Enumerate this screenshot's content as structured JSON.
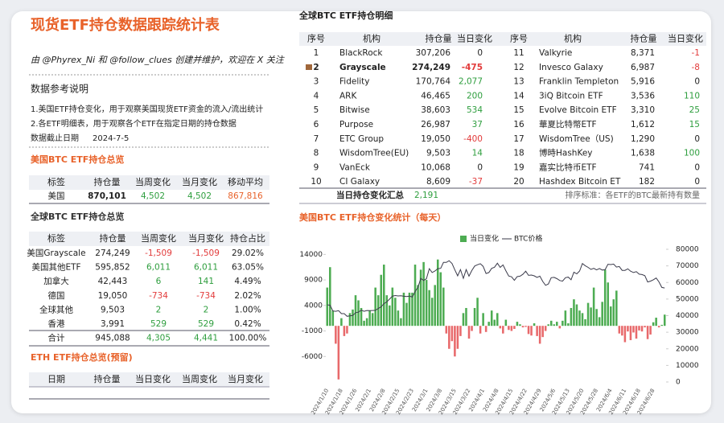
{
  "header": {
    "title": "现货ETF持仓数据跟踪统计表",
    "subtitle": "由 @Phyrex_Ni 和 @follow_clues 创建并维护，欢迎在 X 关注"
  },
  "notes": {
    "heading": "数据参考说明",
    "lines": [
      "1.美国ETF持仓变化，用于观察美国现货ETF资金的流入/流出统计",
      "2.各ETF明细表，用于观察各个ETF在指定日期的持仓数据"
    ],
    "date_label": "数据截止日期",
    "date": "2024-7-5"
  },
  "us_summary": {
    "title": "美国BTC ETF持仓总览",
    "headers": [
      "标签",
      "持仓量",
      "当周变化",
      "当月变化",
      "移动平均"
    ],
    "rows": [
      [
        "美国",
        "870,101",
        "4,502",
        "4,502",
        "867,816"
      ]
    ]
  },
  "global_summary": {
    "title": "全球BTC ETF持仓总览",
    "headers": [
      "标签",
      "持仓量",
      "当周变化",
      "当月变化",
      "持仓占比"
    ],
    "rows": [
      [
        "美国Grayscale",
        "274,249",
        "-1,509",
        "-1,509",
        "29.02%"
      ],
      [
        "美国其他ETF",
        "595,852",
        "6,011",
        "6,011",
        "63.05%"
      ],
      [
        "加拿大",
        "42,443",
        "6",
        "141",
        "4.49%"
      ],
      [
        "德国",
        "19,050",
        "-734",
        "-734",
        "2.02%"
      ],
      [
        "全球其他",
        "9,503",
        "2",
        "2",
        "1.00%"
      ],
      [
        "香港",
        "3,991",
        "529",
        "529",
        "0.42%"
      ],
      [
        "合计",
        "945,088",
        "4,305",
        "4,441",
        "100.00%"
      ]
    ]
  },
  "eth_summary": {
    "title": "ETH ETF持仓总览(预留)",
    "headers": [
      "日期",
      "持仓量",
      "当日变化",
      "当周变化",
      "当月变化"
    ]
  },
  "detail": {
    "title": "全球BTC ETF持仓明细",
    "headers": [
      "序号",
      "机构",
      "持仓量",
      "当日变化",
      "序号",
      "机构",
      "持仓量",
      "当日变化"
    ],
    "rows": [
      [
        "1",
        "BlackRock",
        "307,206",
        "0",
        "11",
        "Valkyrie",
        "8,371",
        "-1"
      ],
      [
        "2",
        "Grayscale",
        "274,249",
        "-475",
        "12",
        "Invesco Galaxy",
        "6,987",
        "-8"
      ],
      [
        "3",
        "Fidelity",
        "170,764",
        "2,077",
        "13",
        "Franklin Templeton",
        "5,916",
        "0"
      ],
      [
        "4",
        "ARK",
        "46,465",
        "200",
        "14",
        "3iQ Bitcoin ETF",
        "3,536",
        "110"
      ],
      [
        "5",
        "Bitwise",
        "38,603",
        "534",
        "15",
        "Evolve Bitcoin ETF",
        "3,310",
        "25"
      ],
      [
        "6",
        "Purpose",
        "26,987",
        "37",
        "16",
        "華夏比特幣ETF",
        "1,612",
        "15"
      ],
      [
        "7",
        "ETC Group",
        "19,050",
        "-400",
        "17",
        "WisdomTree（US)",
        "1,290",
        "0"
      ],
      [
        "8",
        "WisdomTree(EU)",
        "9,503",
        "14",
        "18",
        "博時HashKey",
        "1,638",
        "100"
      ],
      [
        "9",
        "VanEck",
        "10,068",
        "0",
        "19",
        "嘉实比特币ETF",
        "741",
        "0"
      ],
      [
        "10",
        "CI Galaxy",
        "8,609",
        "-37",
        "20",
        "Hashdex Bitcoin ET",
        "182",
        "0"
      ]
    ],
    "total_label": "当日持仓变化汇总",
    "total": "2,191",
    "note": "排序标准：各ETF的BTC最新持有数量"
  },
  "chart_data": {
    "type": "bar_line",
    "title": "美国BTC ETF持仓变化统计（每天）",
    "categories": [
      "2024/1/10",
      null,
      null,
      null,
      null,
      "2024/1/18",
      null,
      null,
      null,
      null,
      "2024/1/26",
      null,
      null,
      null,
      null,
      "2024/2/1",
      null,
      null,
      null,
      null,
      "2024/2/8",
      null,
      null,
      null,
      null,
      "2024/2/15",
      null,
      null,
      null,
      null,
      "2024/2/23",
      null,
      null,
      null,
      null,
      "2024/3/1",
      null,
      null,
      null,
      null,
      "2024/3/8",
      null,
      null,
      null,
      null,
      "2024/3/15",
      null,
      null,
      null,
      null,
      "2024/3/22",
      null,
      null,
      null,
      null,
      "2024/4/1",
      null,
      null,
      null,
      null,
      "2024/4/8",
      null,
      null,
      null,
      null,
      "2024/4/15",
      null,
      null,
      null,
      null,
      "2024/4/22",
      null,
      null,
      null,
      null,
      "2024/4/29",
      null,
      null,
      null,
      null,
      "2024/5/6",
      null,
      null,
      null,
      null,
      "2024/5/13",
      null,
      null,
      null,
      null,
      "2024/5/20",
      null,
      null,
      null,
      null,
      "2024/5/28",
      null,
      null,
      null,
      null,
      "2024/6/4",
      null,
      null,
      null,
      null,
      "2024/6/11",
      null,
      null,
      null,
      null,
      "2024/6/18",
      null,
      null,
      null,
      null,
      "2024/6/28",
      null,
      null,
      null,
      null
    ],
    "series": [
      {
        "name": "当日变化",
        "color": "#4dac52",
        "negative_color": "#e8696b",
        "values": [
          7500,
          11500,
          3000,
          -3500,
          -10500,
          1500,
          -2000,
          -1500,
          2500,
          3200,
          6000,
          5000,
          3500,
          1000,
          1500,
          3000,
          2500,
          7500,
          6000,
          10000,
          12000,
          6000,
          4000,
          7500,
          5500,
          3000,
          1500,
          6500,
          4500,
          6500,
          6500,
          12000,
          8000,
          11000,
          12500,
          9000,
          7000,
          5500,
          8000,
          13000,
          10500,
          7500,
          -1500,
          -4500,
          -3000,
          -6000,
          -4500,
          -2000,
          2500,
          3500,
          -2500,
          -1000,
          3500,
          5500,
          -1500,
          2500,
          -1200,
          800,
          3000,
          1200,
          2500,
          -500,
          -1500,
          1200,
          -800,
          -1000,
          -600,
          800,
          300,
          -300,
          -200,
          -1600,
          -1900,
          500,
          -2000,
          -3500,
          -2200,
          -1000,
          300,
          1000,
          300,
          800,
          -500,
          1000,
          3000,
          500,
          3500,
          5200,
          4200,
          3000,
          2500,
          1300,
          4500,
          3600,
          7500,
          3300,
          1700,
          4700,
          11000,
          8500,
          3800,
          5200,
          6900,
          -1500,
          -1900,
          -3200,
          -1100,
          -2800,
          -1300,
          -2500,
          -900,
          -1100,
          -300,
          -2600,
          -1700,
          700,
          1600,
          -300,
          200,
          2200
        ]
      },
      {
        "name": "BTC价格",
        "color": "#3a3a4a",
        "axis": "y2",
        "values": [
          46500,
          46300,
          42800,
          42600,
          43000,
          41200,
          41200,
          39600,
          39900,
          40100,
          41800,
          42100,
          43300,
          42600,
          43100,
          43000,
          43100,
          43200,
          44300,
          45300,
          47200,
          48300,
          50000,
          51800,
          52100,
          51900,
          52000,
          51700,
          51500,
          51800,
          51200,
          54500,
          57100,
          62500,
          61200,
          62300,
          68300,
          66000,
          66900,
          68300,
          68500,
          72100,
          72100,
          73100,
          71400,
          67600,
          64000,
          67800,
          62500,
          67800,
          63800,
          67200,
          69900,
          70700,
          71300,
          69700,
          65400,
          66000,
          68500,
          69200,
          71600,
          69100,
          70600,
          67100,
          63900,
          63400,
          61300,
          63500,
          63800,
          64900,
          66800,
          64300,
          64500,
          64000,
          63100,
          63800,
          60600,
          58300,
          59100,
          62900,
          63100,
          62300,
          61200,
          60800,
          62900,
          63200,
          61600,
          66200,
          65200,
          66900,
          71400,
          70100,
          69100,
          67900,
          68500,
          67600,
          68400,
          67500,
          67700,
          71000,
          70800,
          71100,
          69300,
          69600,
          67300,
          67300,
          68200,
          66800,
          66000,
          66500,
          65000,
          64800,
          64100,
          60300,
          60800,
          61600,
          62700,
          60300,
          57000,
          56700
        ]
      }
    ],
    "ylim": [
      -11000,
      15000
    ],
    "yticks": [
      -6000,
      -1000,
      4000,
      9000,
      14000
    ],
    "y2lim": [
      0,
      80000
    ],
    "y2ticks": [
      0,
      10000,
      20000,
      30000,
      40000,
      50000,
      60000,
      70000,
      80000
    ],
    "legend": "top"
  }
}
